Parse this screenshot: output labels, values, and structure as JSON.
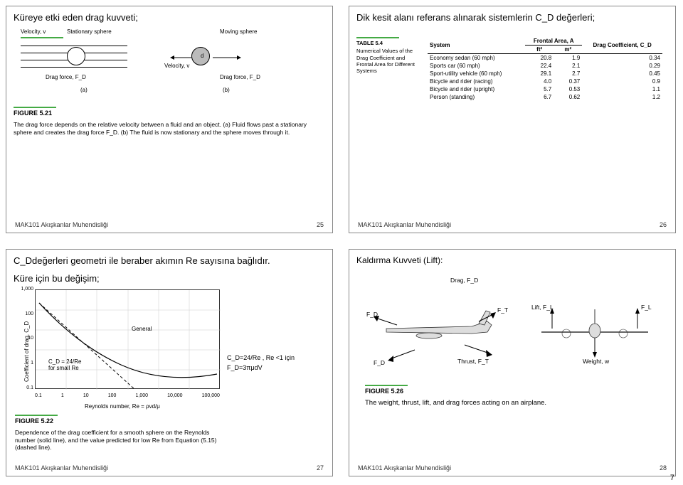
{
  "global": {
    "footer_left": "MAK101 Akışkanlar Muhendisliği",
    "page_number": "7"
  },
  "slide25": {
    "title": "Küreye etki eden drag kuvveti;",
    "velocity_label": "Velocity, v",
    "stationary": "Stationary sphere",
    "moving": "Moving sphere",
    "drag_force": "Drag force, F_D",
    "part_a": "(a)",
    "part_b": "(b)",
    "figure_label": "FIGURE 5.21",
    "caption": "The drag force depends on the relative velocity between a fluid and an object. (a) Fluid flows past a stationary sphere and creates the drag force F_D. (b) The fluid is now stationary and the sphere moves through it.",
    "slide_number": "25",
    "sphere_radius_label": "d"
  },
  "slide26": {
    "title": "Dik kesit alanı referans alınarak sistemlerin C_D değerleri;",
    "table_label": "TABLE 5.4",
    "table_desc": "Numerical Values of the Drag Coefficient and Frontal Area for Different Systems",
    "head_system": "System",
    "head_frontal": "Frontal Area, A",
    "head_ft2": "ft²",
    "head_m2": "m²",
    "head_cd": "Drag Coefficient, C_D",
    "rows": [
      {
        "system": "Economy sedan (60 mph)",
        "ft2": "20.8",
        "m2": "1.9",
        "cd": "0.34"
      },
      {
        "system": "Sports car (60 mph)",
        "ft2": "22.4",
        "m2": "2.1",
        "cd": "0.29"
      },
      {
        "system": "Sport-utility vehicle (60 mph)",
        "ft2": "29.1",
        "m2": "2.7",
        "cd": "0.45"
      },
      {
        "system": "Bicycle and rider (racing)",
        "ft2": "4.0",
        "m2": "0.37",
        "cd": "0.9"
      },
      {
        "system": "Bicycle and rider (upright)",
        "ft2": "5.7",
        "m2": "0.53",
        "cd": "1.1"
      },
      {
        "system": "Person (standing)",
        "ft2": "6.7",
        "m2": "0.62",
        "cd": "1.2"
      }
    ],
    "slide_number": "26"
  },
  "slide27": {
    "title_line1": "C_Ddeğerleri geometri ile beraber akımın Re sayısına bağlıdır.",
    "subtitle": "Küre için bu değişim;",
    "chart": {
      "type": "line-loglog",
      "x_label": "Reynolds number, Re = ρvd/μ",
      "y_label": "Coefficient of drag, C_D",
      "x_ticks": [
        "0.1",
        "1",
        "10",
        "100",
        "1,000",
        "10,000",
        "100,000"
      ],
      "y_ticks": [
        "0.1",
        "1",
        "10",
        "100",
        "1,000"
      ],
      "xlim": [
        0.1,
        100000
      ],
      "ylim": [
        0.1,
        1000
      ],
      "series": [
        {
          "name": "General",
          "color": "#000000",
          "dash": "solid"
        },
        {
          "name": "C_D = 24/Re for small Re",
          "color": "#000000",
          "dash": "dashed"
        }
      ],
      "grid_color": "#cccccc",
      "background_color": "#ffffff",
      "line_width": 1
    },
    "legend_general": "General",
    "legend_lowre": "C_D = 24/Re\nfor small Re",
    "formula1": "C_D=24/Re , Re <1 için",
    "formula2": "F_D=3πμdV",
    "figure_label": "FIGURE 5.22",
    "caption": "Dependence of the drag coefficient for a smooth sphere on the Reynolds number (solid line), and the value predicted for low Re from Equation (5.15) (dashed line).",
    "slide_number": "27"
  },
  "slide28": {
    "title": "Kaldırma Kuvveti (Lift):",
    "drag_label": "Drag, F_D",
    "fd": "F_D",
    "ft": "F_T",
    "thrust": "Thrust, F_T",
    "lift": "Lift, F_L",
    "weight": "Weight, w",
    "fl": "F_L",
    "figure_label": "FIGURE 5.26",
    "caption": "The weight, thrust, lift, and drag forces acting on an airplane.",
    "slide_number": "28",
    "colors": {
      "plane_fill": "#dddddd",
      "arrow": "#000000"
    }
  }
}
